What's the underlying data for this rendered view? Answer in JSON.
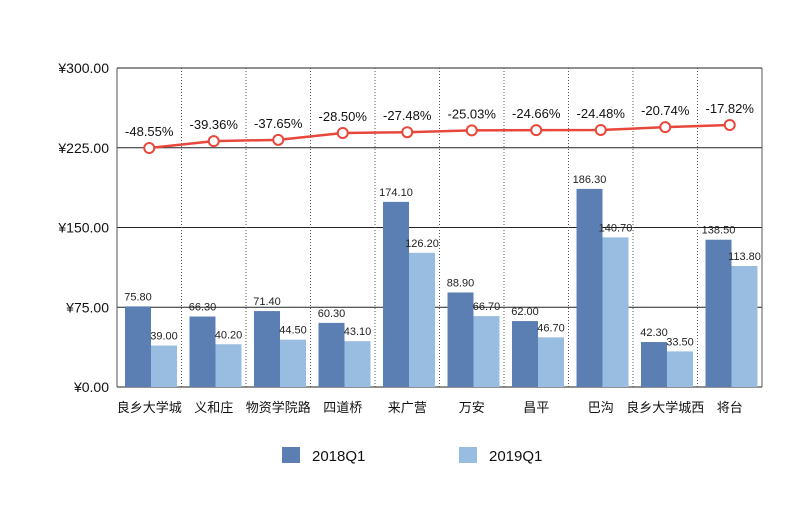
{
  "chart_data": {
    "type": "bar",
    "categories": [
      "良乡大学城",
      "义和庄",
      "物资学院路",
      "四道桥",
      "来广营",
      "万安",
      "昌平",
      "巴沟",
      "良乡大学城西",
      "将台"
    ],
    "series": [
      {
        "name": "2018Q1",
        "values": [
          75.8,
          66.3,
          71.4,
          60.3,
          174.1,
          88.9,
          62.0,
          186.3,
          42.3,
          138.5
        ],
        "labels": [
          "75.80",
          "66.30",
          "71.40",
          "60.30",
          "174.10",
          "88.90",
          "62.00",
          "186.30",
          "42.30",
          "138.50"
        ],
        "color": "#5b7fb3"
      },
      {
        "name": "2019Q1",
        "values": [
          39.0,
          40.2,
          44.5,
          43.1,
          126.2,
          66.7,
          46.7,
          140.7,
          33.5,
          113.8
        ],
        "labels": [
          "39.00",
          "40.20",
          "44.50",
          "43.10",
          "126.20",
          "66.70",
          "46.70",
          "140.70",
          "33.50",
          "113.80"
        ],
        "color": "#99bde0"
      }
    ],
    "change_line": {
      "values": [
        -48.55,
        -39.36,
        -37.65,
        -28.5,
        -27.48,
        -25.03,
        -24.66,
        -24.48,
        -20.74,
        -17.82
      ],
      "labels": [
        "-48.55%",
        "-39.36%",
        "-37.65%",
        "-28.50%",
        "-27.48%",
        "-25.03%",
        "-24.66%",
        "-24.48%",
        "-20.74%",
        "-17.82%"
      ],
      "color": "#e8483b"
    },
    "y_ticks": [
      "¥0.00",
      "¥75.00",
      "¥150.00",
      "¥225.00",
      "¥300.00"
    ],
    "ylim": [
      0,
      300
    ],
    "grid": true,
    "legend": "bottom"
  }
}
